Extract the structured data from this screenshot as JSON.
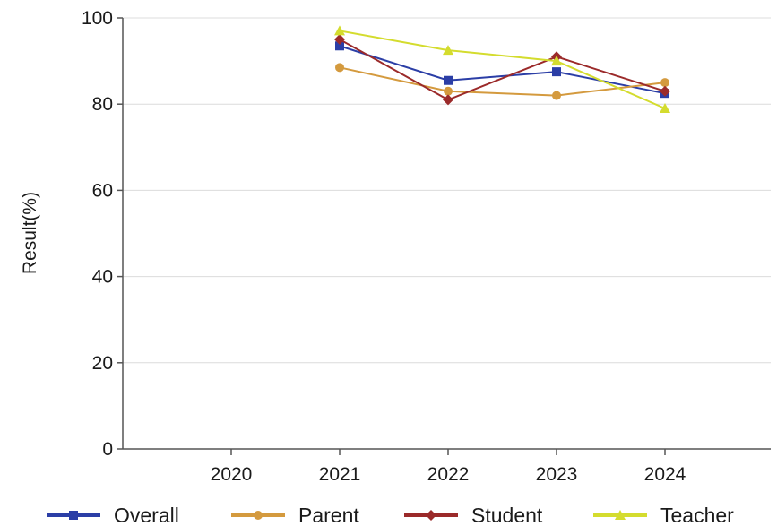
{
  "chart_data": {
    "type": "line",
    "title": "",
    "xlabel": "",
    "ylabel": "Result(%)",
    "categories": [
      "2020",
      "2021",
      "2022",
      "2023",
      "2024"
    ],
    "ylim": [
      0,
      100
    ],
    "yticks": [
      0,
      20,
      40,
      60,
      80,
      100
    ],
    "grid": true,
    "legend_position": "bottom",
    "series": [
      {
        "name": "Overall",
        "color": "#2b3ea6",
        "marker": "square",
        "values": [
          null,
          93.5,
          85.5,
          87.5,
          82.5
        ]
      },
      {
        "name": "Parent",
        "color": "#d49a3e",
        "marker": "circle",
        "values": [
          null,
          88.5,
          83.0,
          82.0,
          85.0
        ]
      },
      {
        "name": "Student",
        "color": "#9b2a2a",
        "marker": "diamond",
        "values": [
          null,
          95.0,
          81.0,
          91.0,
          83.0
        ]
      },
      {
        "name": "Teacher",
        "color": "#d4dc2e",
        "marker": "triangle",
        "values": [
          null,
          97.0,
          92.5,
          90.0,
          79.0
        ]
      }
    ]
  }
}
